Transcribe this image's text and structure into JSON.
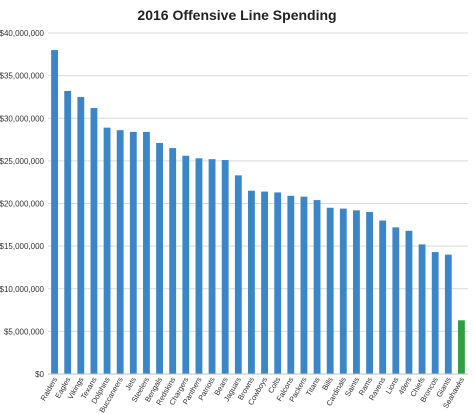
{
  "chart_data": {
    "type": "bar",
    "title": "2016 Offensive Line Spending",
    "xlabel": "",
    "ylabel": "",
    "ylim": [
      0,
      40000000
    ],
    "grid": true,
    "yticks": [
      {
        "value": 0,
        "label": "$0"
      },
      {
        "value": 5000000,
        "label": "$5,000,000"
      },
      {
        "value": 10000000,
        "label": "$10,000,000"
      },
      {
        "value": 15000000,
        "label": "$15,000,000"
      },
      {
        "value": 20000000,
        "label": "$20,000,000"
      },
      {
        "value": 25000000,
        "label": "$25,000,000"
      },
      {
        "value": 30000000,
        "label": "$30,000,000"
      },
      {
        "value": 35000000,
        "label": "$35,000,000"
      },
      {
        "value": 40000000,
        "label": "$40,000,000"
      }
    ],
    "categories": [
      "Raiders",
      "Eagles",
      "Vikings",
      "Texans",
      "Dolphins",
      "Buccaneers",
      "Jets",
      "Steelers",
      "Bengals",
      "Redskins",
      "Chargers",
      "Panthers",
      "Patriots",
      "Bears",
      "Jaguars",
      "Browns",
      "Cowboys",
      "Colts",
      "Falcons",
      "Packers",
      "Titans",
      "Bills",
      "Cardinals",
      "Saints",
      "Rams",
      "Ravens",
      "Lions",
      "49ers",
      "Chiefs",
      "Broncos",
      "Giants",
      "Seahawks"
    ],
    "values": [
      38000000,
      33200000,
      32500000,
      31200000,
      28900000,
      28600000,
      28400000,
      28400000,
      27100000,
      26500000,
      25600000,
      25300000,
      25200000,
      25100000,
      23300000,
      21500000,
      21400000,
      21300000,
      20900000,
      20800000,
      20400000,
      19500000,
      19400000,
      19200000,
      19000000,
      18000000,
      17200000,
      16800000,
      15200000,
      14300000,
      14000000,
      6300000
    ],
    "colors": {
      "default": "#3a86c8",
      "highlight": "#2ea043"
    },
    "highlight_index": 31
  }
}
